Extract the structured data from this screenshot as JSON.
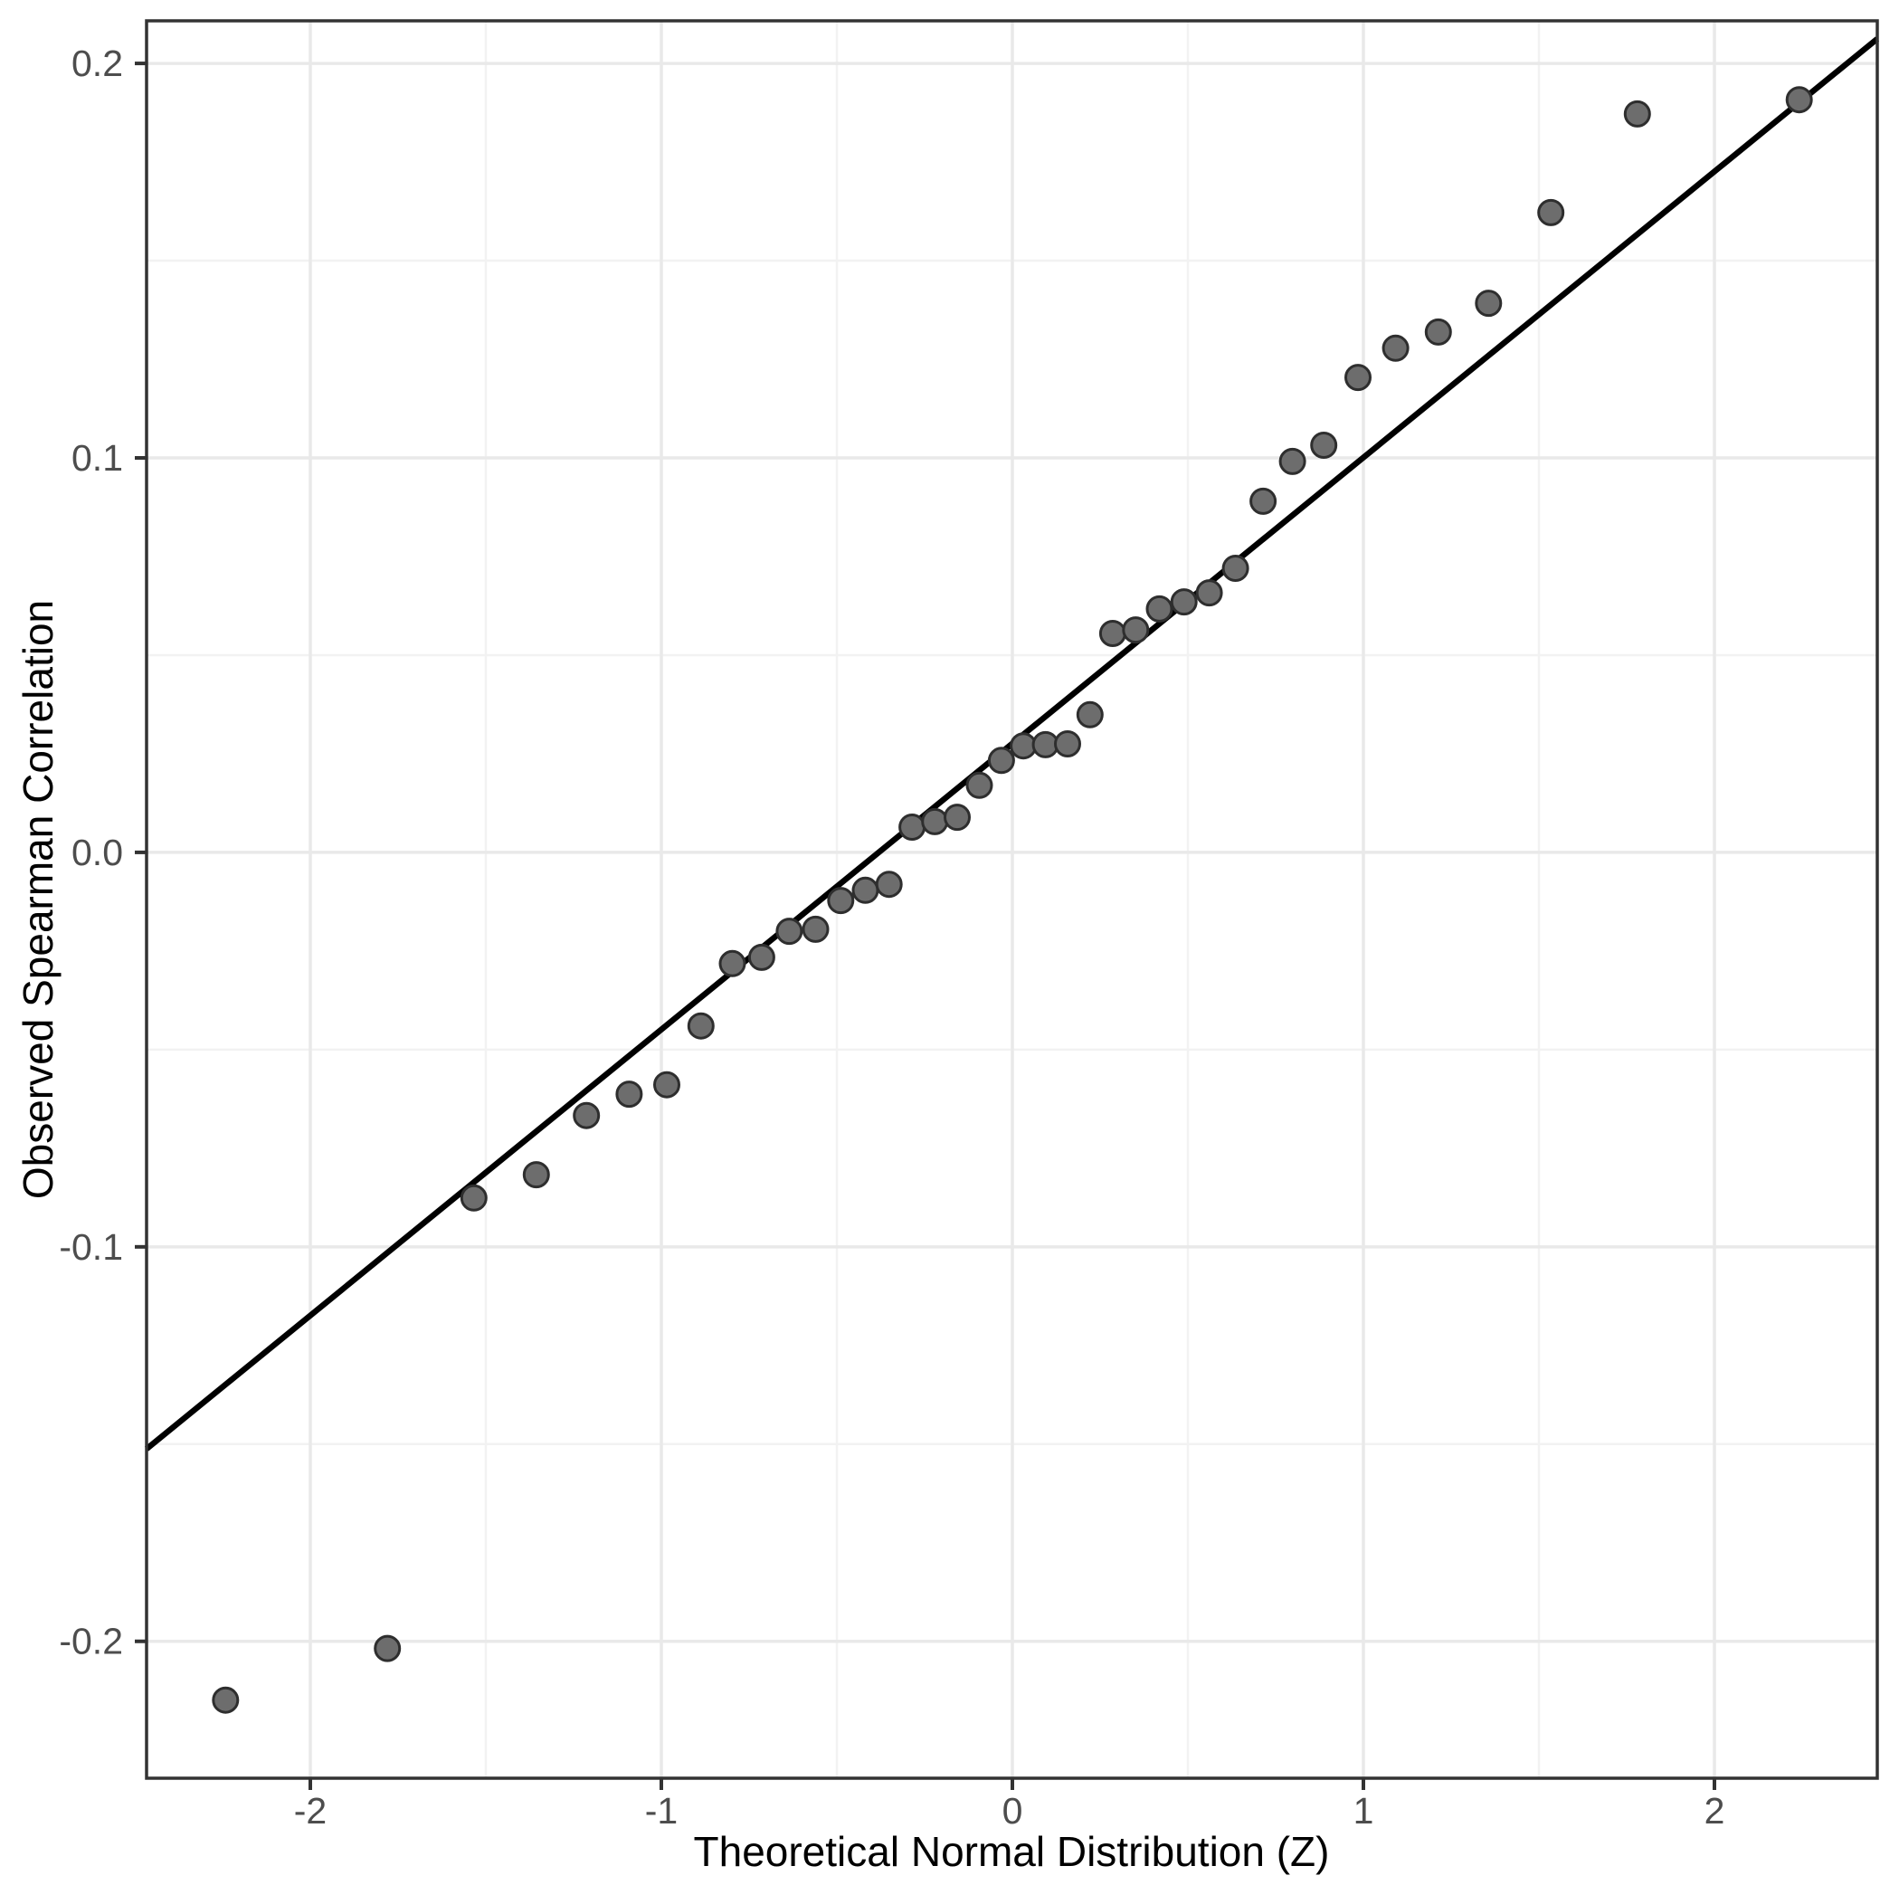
{
  "figure": {
    "background_color": "#ffffff",
    "panel_background_color": "#ffffff",
    "panel_border_color": "#333333",
    "grid_major_color": "#e9e9e9",
    "grid_minor_color": "#f2f2f2",
    "tick_mark_color": "#333333",
    "tick_label_color": "#4d4d4d",
    "axis_title_color": "#000000",
    "point_fill_color": "#6d6d6d",
    "point_stroke_color": "#2e2e2e",
    "reference_line_color": "#000000"
  },
  "chart_data": {
    "type": "scatter",
    "title": "",
    "xlabel": "Theoretical Normal Distribution (Z)",
    "ylabel": "Observed Spearman Correlation",
    "xlim": [
      -2.4665,
      2.4639
    ],
    "ylim": [
      -0.2347,
      0.2108
    ],
    "grid": true,
    "legend_position": "none",
    "x_ticks": {
      "values": [
        -2,
        -1,
        0,
        1,
        2
      ],
      "labels": [
        "-2",
        "-1",
        "0",
        "1",
        "2"
      ],
      "minor": [
        -1.5,
        -0.5,
        0.5,
        1.5
      ]
    },
    "y_ticks": {
      "values": [
        0.2,
        0.1,
        0.0,
        -0.1,
        -0.2
      ],
      "labels": [
        "0.2",
        "0.1",
        "0.0",
        "-0.1",
        "-0.2"
      ],
      "minor": [
        0.15,
        0.05,
        -0.05,
        -0.15
      ]
    },
    "reference_line": {
      "description": "QQ normal reference line",
      "intercept": 0.0276,
      "slope": 0.0725
    },
    "series": [
      {
        "name": "observed-vs-theoretical-quantiles",
        "points": [
          [
            -2.2414,
            -0.2149
          ],
          [
            -1.7805,
            -0.2018
          ],
          [
            -1.5341,
            -0.0876
          ],
          [
            -1.3563,
            -0.0817
          ],
          [
            -1.2134,
            -0.0667
          ],
          [
            -1.0917,
            -0.0613
          ],
          [
            -0.9845,
            -0.0589
          ],
          [
            -0.8871,
            -0.044
          ],
          [
            -0.7978,
            -0.0282
          ],
          [
            -0.7142,
            -0.0266
          ],
          [
            -0.6356,
            -0.02
          ],
          [
            -0.5607,
            -0.0195
          ],
          [
            -0.4888,
            -0.0122
          ],
          [
            -0.4187,
            -0.0096
          ],
          [
            -0.3512,
            -0.0081
          ],
          [
            -0.2859,
            0.0064
          ],
          [
            -0.2211,
            0.0078
          ],
          [
            -0.1573,
            0.0089
          ],
          [
            -0.0942,
            0.017
          ],
          [
            -0.0313,
            0.0233
          ],
          [
            0.0313,
            0.027
          ],
          [
            0.0942,
            0.0273
          ],
          [
            0.1573,
            0.0275
          ],
          [
            0.2211,
            0.0349
          ],
          [
            0.2859,
            0.0555
          ],
          [
            0.3512,
            0.0564
          ],
          [
            0.4187,
            0.0617
          ],
          [
            0.4888,
            0.0635
          ],
          [
            0.5607,
            0.0658
          ],
          [
            0.6356,
            0.072
          ],
          [
            0.7142,
            0.089
          ],
          [
            0.7978,
            0.0991
          ],
          [
            0.8871,
            0.1032
          ],
          [
            0.9845,
            0.1204
          ],
          [
            1.0917,
            0.1278
          ],
          [
            1.2134,
            0.1319
          ],
          [
            1.3563,
            0.1392
          ],
          [
            1.5341,
            0.1622
          ],
          [
            1.7805,
            0.1872
          ],
          [
            2.2414,
            0.1908
          ]
        ]
      }
    ]
  }
}
